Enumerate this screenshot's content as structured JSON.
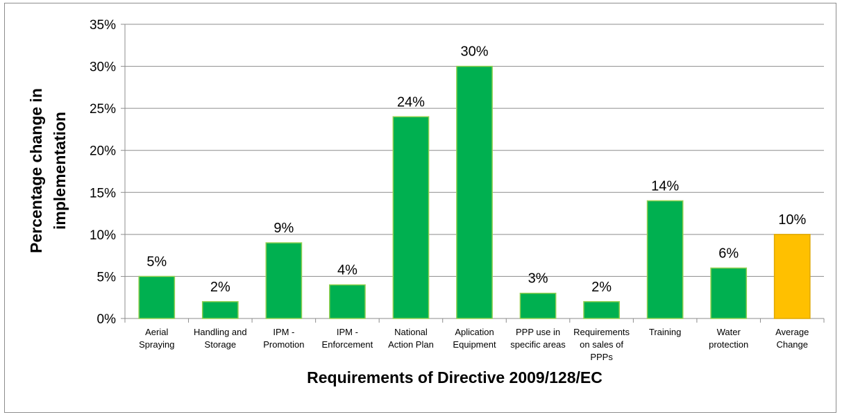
{
  "chart_data": {
    "type": "bar",
    "title": "",
    "xlabel": "Requirements of Directive 2009/128/EC",
    "ylabel_lines": [
      "Percentage change in",
      "implementation"
    ],
    "ylim": [
      0,
      35
    ],
    "yticks": [
      0,
      5,
      10,
      15,
      20,
      25,
      30,
      35
    ],
    "ytick_labels": [
      "0%",
      "5%",
      "10%",
      "15%",
      "20%",
      "25%",
      "30%",
      "35%"
    ],
    "grid": true,
    "legend": "none",
    "categories": [
      [
        "Aerial",
        "Spraying"
      ],
      [
        "Handling and",
        "Storage"
      ],
      [
        "IPM -",
        "Promotion"
      ],
      [
        "IPM -",
        "Enforcement"
      ],
      [
        "National",
        "Action Plan"
      ],
      [
        "Aplication",
        "Equipment"
      ],
      [
        "PPP use in",
        "specific areas"
      ],
      [
        "Requirements",
        "on sales of",
        "PPPs"
      ],
      [
        "Training"
      ],
      [
        "Water",
        "protection"
      ],
      [
        "Average",
        "Change"
      ]
    ],
    "values": [
      5,
      2,
      9,
      4,
      24,
      30,
      3,
      2,
      14,
      6,
      10
    ],
    "data_labels": [
      "5%",
      "2%",
      "9%",
      "4%",
      "24%",
      "30%",
      "3%",
      "2%",
      "14%",
      "6%",
      "10%"
    ],
    "colors": {
      "bar": "#00b050",
      "bar_border": "#92d050",
      "highlight_bar": "#ffc000",
      "highlight_border": "#e0a800",
      "gridline": "#8c8c8c",
      "axis": "#8c8c8c"
    },
    "highlight_index": 10
  }
}
